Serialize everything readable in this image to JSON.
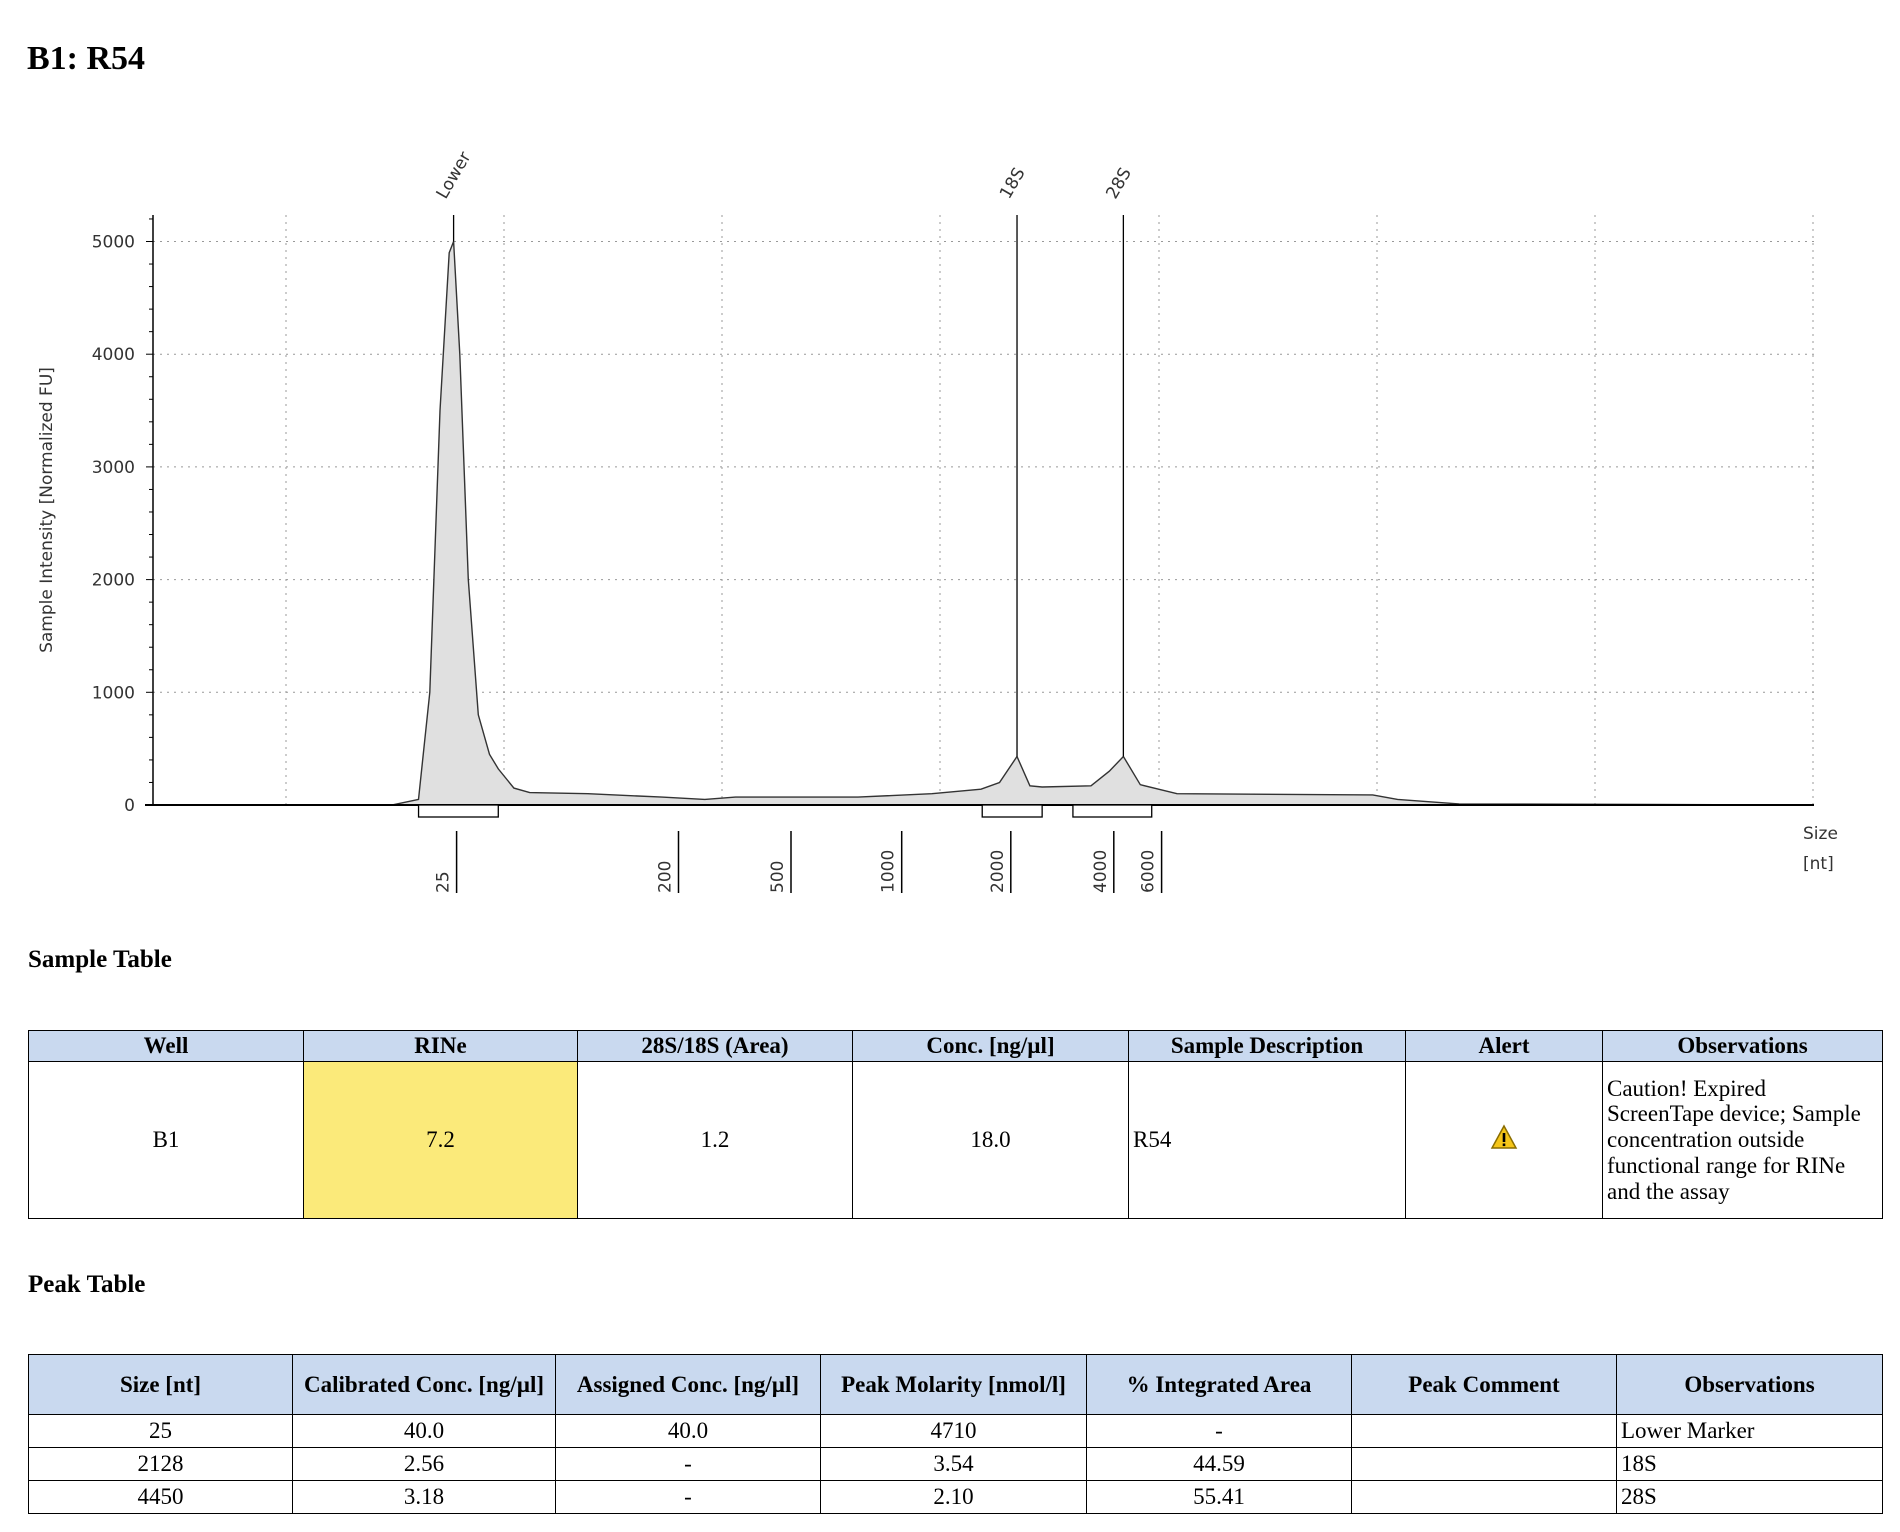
{
  "title": "B1: R54",
  "chart_data": {
    "type": "area",
    "ylabel": "Sample Intensity [Normalized FU]",
    "xlabel": [
      "Size",
      "[nt]"
    ],
    "ylim": [
      0,
      5000
    ],
    "yticks": [
      0,
      1000,
      2000,
      3000,
      4000,
      5000
    ],
    "xticks": [
      25,
      200,
      500,
      1000,
      2000,
      4000,
      6000
    ],
    "grid": true,
    "fill_color": "#e0e0e0",
    "peaks": [
      {
        "label": "Lower",
        "size": 25,
        "intensity": 5000,
        "range": [
          18,
          38
        ]
      },
      {
        "label": "18S",
        "size": 2128,
        "intensity": 430,
        "range": [
          1700,
          2520
        ]
      },
      {
        "label": "28S",
        "size": 4450,
        "intensity": 430,
        "range": [
          3100,
          5660
        ]
      }
    ],
    "trace": [
      [
        2,
        0
      ],
      [
        14,
        0
      ],
      [
        18,
        50
      ],
      [
        20,
        1000
      ],
      [
        22,
        3500
      ],
      [
        24,
        4900
      ],
      [
        25,
        5000
      ],
      [
        26.5,
        4000
      ],
      [
        28.7,
        2000
      ],
      [
        31.5,
        800
      ],
      [
        35,
        450
      ],
      [
        38,
        320
      ],
      [
        44,
        150
      ],
      [
        51,
        110
      ],
      [
        88,
        100
      ],
      [
        176,
        70
      ],
      [
        254,
        50
      ],
      [
        326,
        70
      ],
      [
        775,
        70
      ],
      [
        1235,
        100
      ],
      [
        1687,
        140
      ],
      [
        1897,
        200
      ],
      [
        2128,
        430
      ],
      [
        2320,
        170
      ],
      [
        2520,
        160
      ],
      [
        3500,
        170
      ],
      [
        3960,
        300
      ],
      [
        4450,
        430
      ],
      [
        5136,
        180
      ],
      [
        6000,
        140
      ],
      [
        7015,
        100
      ],
      [
        37000,
        90
      ],
      [
        45700,
        50
      ],
      [
        77000,
        10
      ],
      [
        1580000,
        0
      ]
    ]
  },
  "sample_table": {
    "heading": "Sample Table",
    "columns": [
      "Well",
      "RINe",
      "28S/18S (Area)",
      "Conc. [ng/µl]",
      "Sample Description",
      "Alert",
      "Observations"
    ],
    "row": {
      "well": "B1",
      "rine": "7.2",
      "ratio": "1.2",
      "conc": "18.0",
      "description": "R54",
      "alert_icon": "warning-triangle",
      "observations": "Caution! Expired ScreenTape device; Sample concentration outside functional range for RINe and the assay"
    }
  },
  "peak_table": {
    "heading": "Peak Table",
    "columns": [
      "Size [nt]",
      "Calibrated Conc. [ng/µl]",
      "Assigned Conc. [ng/µl]",
      "Peak Molarity [nmol/l]",
      "% Integrated Area",
      "Peak Comment",
      "Observations"
    ],
    "rows": [
      [
        "25",
        "40.0",
        "40.0",
        "4710",
        "-",
        "",
        "Lower Marker"
      ],
      [
        "2128",
        "2.56",
        "-",
        "3.54",
        "44.59",
        "",
        "18S"
      ],
      [
        "4450",
        "3.18",
        "-",
        "2.10",
        "55.41",
        "",
        "28S"
      ]
    ]
  }
}
